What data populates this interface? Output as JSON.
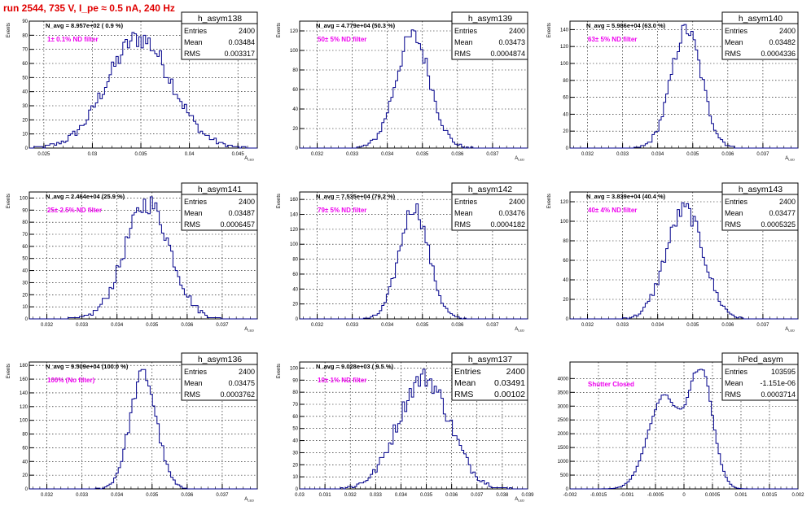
{
  "page": {
    "title": "run 2544,   735 V, I_pe ≈ 0.5 nA, 240 Hz"
  },
  "colors": {
    "histogram_line": "#00008b",
    "annotation": "#ee00ee",
    "title_red": "#e00000",
    "grid": "#000000"
  },
  "chart_data": [
    {
      "type": "histogram",
      "title": "h_asym138",
      "annotation_top": "N_avg = 8.957e+02 ( 0.9 %)",
      "annotation_filter": "1± 0.1% ND filter",
      "stats": [
        [
          "Entries",
          "2400"
        ],
        [
          "Mean",
          "0.03484"
        ],
        [
          "RMS",
          "0.003317"
        ]
      ],
      "ylabel": "Events",
      "xlabel": "A_LED",
      "xlim": [
        0.0235,
        0.047
      ],
      "ylim": [
        0,
        90
      ],
      "xticks": [
        0.025,
        0.03,
        0.035,
        0.04,
        0.045
      ],
      "xtick_labels": [
        "0.025",
        "0.03",
        "0.035",
        "0.04",
        "0.045"
      ],
      "yticks": [
        0,
        10,
        20,
        30,
        40,
        50,
        60,
        70,
        80,
        90
      ],
      "mean": 0.03484,
      "sigma": 0.003317,
      "peak": 78,
      "bins": 100,
      "bimodal": false
    },
    {
      "type": "histogram",
      "title": "h_asym139",
      "annotation_top": "N_avg = 4.779e+04 (50.3 %)",
      "annotation_filter": "50± 5% ND filter",
      "stats": [
        [
          "Entries",
          "2400"
        ],
        [
          "Mean",
          "0.03473"
        ],
        [
          "RMS",
          "0.0004874"
        ]
      ],
      "ylabel": "Events",
      "xlabel": "A_LED",
      "xlim": [
        0.0315,
        0.038
      ],
      "ylim": [
        0,
        130
      ],
      "xticks": [
        0.032,
        0.033,
        0.034,
        0.035,
        0.036,
        0.037
      ],
      "xtick_labels": [
        "0.032",
        "0.033",
        "0.034",
        "0.035",
        "0.036",
        "0.037"
      ],
      "yticks": [
        0,
        20,
        40,
        60,
        80,
        100,
        120
      ],
      "mean": 0.03473,
      "sigma": 0.0004874,
      "peak": 115,
      "bins": 100,
      "bimodal": false
    },
    {
      "type": "histogram",
      "title": "h_asym140",
      "annotation_top": "N_avg = 5.986e+04 (63.0 %)",
      "annotation_filter": "63± 5% ND filter",
      "stats": [
        [
          "Entries",
          "2400"
        ],
        [
          "Mean",
          "0.03482"
        ],
        [
          "RMS",
          "0.0004336"
        ]
      ],
      "ylabel": "Events",
      "xlabel": "A_LED",
      "xlim": [
        0.0315,
        0.038
      ],
      "ylim": [
        0,
        150
      ],
      "xticks": [
        0.032,
        0.033,
        0.034,
        0.035,
        0.036,
        0.037
      ],
      "xtick_labels": [
        "0.032",
        "0.033",
        "0.034",
        "0.035",
        "0.036",
        "0.037"
      ],
      "yticks": [
        0,
        20,
        40,
        60,
        80,
        100,
        120,
        140
      ],
      "mean": 0.03482,
      "sigma": 0.0004336,
      "peak": 140,
      "bins": 100,
      "bimodal": false
    },
    {
      "type": "histogram",
      "title": "h_asym141",
      "annotation_top": "N_avg = 2.464e+04 (25.9 %)",
      "annotation_filter": "25± 2.5% ND filter",
      "stats": [
        [
          "Entries",
          "2400"
        ],
        [
          "Mean",
          "0.03487"
        ],
        [
          "RMS",
          "0.0006457"
        ]
      ],
      "ylabel": "Events",
      "xlabel": "A_LED",
      "xlim": [
        0.0315,
        0.038
      ],
      "ylim": [
        0,
        105
      ],
      "xticks": [
        0.032,
        0.033,
        0.034,
        0.035,
        0.036,
        0.037
      ],
      "xtick_labels": [
        "0.032",
        "0.033",
        "0.034",
        "0.035",
        "0.036",
        "0.037"
      ],
      "yticks": [
        0,
        10,
        20,
        30,
        40,
        50,
        60,
        70,
        80,
        90,
        100
      ],
      "mean": 0.03487,
      "sigma": 0.0006457,
      "peak": 96,
      "bins": 100,
      "bimodal": false
    },
    {
      "type": "histogram",
      "title": "h_asym142",
      "annotation_top": "N_avg = 7.535e+04 (79.2 %)",
      "annotation_filter": "79± 5% ND filter",
      "stats": [
        [
          "Entries",
          "2400"
        ],
        [
          "Mean",
          "0.03476"
        ],
        [
          "RMS",
          "0.0004182"
        ]
      ],
      "ylabel": "Events",
      "xlabel": "A_LED",
      "xlim": [
        0.0315,
        0.038
      ],
      "ylim": [
        0,
        170
      ],
      "xticks": [
        0.032,
        0.033,
        0.034,
        0.035,
        0.036,
        0.037
      ],
      "xtick_labels": [
        "0.032",
        "0.033",
        "0.034",
        "0.035",
        "0.036",
        "0.037"
      ],
      "yticks": [
        0,
        20,
        40,
        60,
        80,
        100,
        120,
        140,
        160
      ],
      "mean": 0.03476,
      "sigma": 0.0004182,
      "peak": 150,
      "bins": 100,
      "bimodal": false
    },
    {
      "type": "histogram",
      "title": "h_asym143",
      "annotation_top": "N_avg = 3.839e+04 (40.4 %)",
      "annotation_filter": "40± 4% ND filter",
      "stats": [
        [
          "Entries",
          "2400"
        ],
        [
          "Mean",
          "0.03477"
        ],
        [
          "RMS",
          "0.0005325"
        ]
      ],
      "ylabel": "Events",
      "xlabel": "A_LED",
      "xlim": [
        0.0315,
        0.038
      ],
      "ylim": [
        0,
        130
      ],
      "xticks": [
        0.032,
        0.033,
        0.034,
        0.035,
        0.036,
        0.037
      ],
      "xtick_labels": [
        "0.032",
        "0.033",
        "0.034",
        "0.035",
        "0.036",
        "0.037"
      ],
      "yticks": [
        0,
        20,
        40,
        60,
        80,
        100,
        120
      ],
      "mean": 0.03477,
      "sigma": 0.0005325,
      "peak": 112,
      "bins": 100,
      "bimodal": false
    },
    {
      "type": "histogram",
      "title": "h_asym136",
      "annotation_top": "N_avg = 9.509e+04 (100.0 %)",
      "annotation_filter": "100% (No filter)",
      "stats": [
        [
          "Entries",
          "2400"
        ],
        [
          "Mean",
          "0.03475"
        ],
        [
          "RMS",
          "0.0003762"
        ]
      ],
      "ylabel": "Events",
      "xlabel": "A_LED",
      "xlim": [
        0.0315,
        0.038
      ],
      "ylim": [
        0,
        185
      ],
      "xticks": [
        0.032,
        0.033,
        0.034,
        0.035,
        0.036,
        0.037
      ],
      "xtick_labels": [
        "0.032",
        "0.033",
        "0.034",
        "0.035",
        "0.036",
        "0.037"
      ],
      "yticks": [
        0,
        20,
        40,
        60,
        80,
        100,
        120,
        140,
        160,
        180
      ],
      "mean": 0.03475,
      "sigma": 0.0003762,
      "peak": 168,
      "bins": 100,
      "bimodal": false
    },
    {
      "type": "histogram",
      "title": "h_asym137",
      "annotation_top": "N_avg = 9.028e+03 ( 9.5 %)",
      "annotation_filter": "10± 1% ND filter",
      "stats": [
        [
          "Entries",
          "2400"
        ],
        [
          "Mean",
          "0.03491"
        ],
        [
          "RMS",
          "0.00102"
        ]
      ],
      "stats_large": true,
      "ylabel": "Events",
      "xlabel": "A_LED",
      "xlim": [
        0.03,
        0.039
      ],
      "ylim": [
        0,
        105
      ],
      "xticks": [
        0.03,
        0.031,
        0.032,
        0.033,
        0.034,
        0.035,
        0.036,
        0.037,
        0.038,
        0.039
      ],
      "xtick_labels": [
        "0.03",
        "0.031",
        "0.032",
        "0.033",
        "0.034",
        "0.035",
        "0.036",
        "0.037",
        "0.038",
        "0.039"
      ],
      "yticks": [
        0,
        10,
        20,
        30,
        40,
        50,
        60,
        70,
        80,
        90,
        100
      ],
      "mean": 0.03491,
      "sigma": 0.00102,
      "peak": 92,
      "bins": 100,
      "bimodal": false
    },
    {
      "type": "histogram",
      "title": "hPed_asym",
      "annotation_top": "",
      "annotation_filter": "Shutter Closed",
      "stats": [
        [
          "Entries",
          "103595"
        ],
        [
          "Mean",
          "-1.151e-06"
        ],
        [
          "RMS",
          "0.0003714"
        ]
      ],
      "ylabel": "",
      "xlabel": "",
      "xlim": [
        -0.002,
        0.002
      ],
      "ylim": [
        0,
        4600
      ],
      "xticks": [
        -0.002,
        -0.0015,
        -0.001,
        -0.0005,
        0,
        0.0005,
        0.001,
        0.0015,
        0.002
      ],
      "xtick_labels": [
        "-0.002",
        "-0.0015",
        "-0.001",
        "-0.0005",
        "0",
        "0.0005",
        "0.001",
        "0.0015",
        "0.002"
      ],
      "yticks": [
        0,
        500,
        1000,
        1500,
        2000,
        2500,
        3000,
        3500,
        4000
      ],
      "mean": -1.2e-06,
      "sigma": 0.0003714,
      "peak": 4300,
      "bins": 100,
      "bimodal": true
    }
  ]
}
